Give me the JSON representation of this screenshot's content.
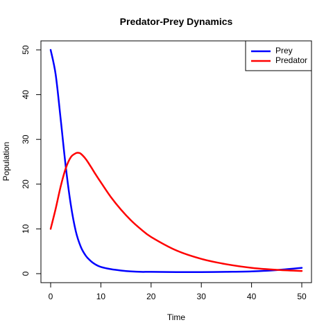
{
  "chart_data": {
    "type": "line",
    "title": "Predator-Prey Dynamics",
    "xlabel": "Time",
    "ylabel": "Population",
    "xlim": [
      0,
      50
    ],
    "ylim": [
      0,
      50
    ],
    "x_ticks": [
      0,
      10,
      20,
      30,
      40,
      50
    ],
    "y_ticks": [
      0,
      10,
      20,
      30,
      40,
      50
    ],
    "grid": false,
    "legend_position": "top-right",
    "series": [
      {
        "name": "Prey",
        "color": "#0000ff",
        "x": [
          0,
          1,
          2,
          3,
          4,
          5,
          6,
          7,
          8,
          9,
          10,
          12,
          14,
          16,
          18,
          20,
          25,
          30,
          35,
          40,
          45,
          50
        ],
        "y": [
          50,
          44.5,
          34.5,
          24,
          15.5,
          9.5,
          6,
          4,
          2.8,
          2,
          1.5,
          1,
          0.7,
          0.5,
          0.4,
          0.4,
          0.35,
          0.35,
          0.4,
          0.5,
          0.8,
          1.3
        ]
      },
      {
        "name": "Predator",
        "color": "#ff0000",
        "x": [
          0,
          1,
          2,
          3,
          4,
          5,
          5.5,
          6,
          7,
          8,
          9,
          10,
          12,
          14,
          16,
          18,
          20,
          25,
          30,
          35,
          40,
          45,
          50
        ],
        "y": [
          10,
          14.5,
          19.5,
          23.5,
          26,
          26.9,
          27,
          26.8,
          25.6,
          23.9,
          22.1,
          20.4,
          17.1,
          14.3,
          11.9,
          9.9,
          8.2,
          5.2,
          3.3,
          2.1,
          1.3,
          0.85,
          0.6
        ]
      }
    ]
  }
}
